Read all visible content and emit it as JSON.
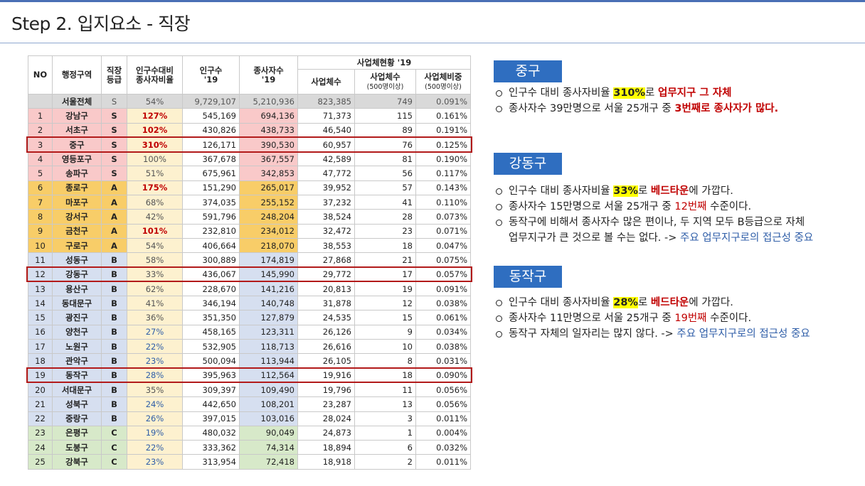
{
  "title": "Step 2. 입지요소 - 직장",
  "table": {
    "headers": {
      "no": "NO",
      "district": "행정구역",
      "grade": "직장\n등급",
      "ratio": "인구수대비\n종사자비율",
      "pop": "인구수\n'19",
      "emp": "종사자수\n'19",
      "biz_group": "사업체현황 '19",
      "biz_count": "사업체수",
      "biz_500": "사업체수",
      "biz_500_sub": "(500명이상)",
      "biz_ratio": "사업체비중",
      "biz_ratio_sub": "(500명이상)"
    },
    "total": {
      "no": "",
      "district": "서울전체",
      "grade": "S",
      "ratio": "54%",
      "pop": "9,729,107",
      "emp": "5,210,936",
      "biz": "823,385",
      "biz500": "749",
      "share": "0.091%"
    },
    "rows": [
      {
        "no": "1",
        "district": "강남구",
        "grade": "S",
        "ratio": "127%",
        "pop": "545,169",
        "emp": "694,136",
        "biz": "71,373",
        "biz500": "115",
        "share": "0.161%"
      },
      {
        "no": "2",
        "district": "서초구",
        "grade": "S",
        "ratio": "102%",
        "pop": "430,826",
        "emp": "438,733",
        "biz": "46,540",
        "biz500": "89",
        "share": "0.191%"
      },
      {
        "no": "3",
        "district": "중구",
        "grade": "S",
        "ratio": "310%",
        "pop": "126,171",
        "emp": "390,530",
        "biz": "60,957",
        "biz500": "76",
        "share": "0.125%"
      },
      {
        "no": "4",
        "district": "영등포구",
        "grade": "S",
        "ratio": "100%",
        "pop": "367,678",
        "emp": "367,557",
        "biz": "42,589",
        "biz500": "81",
        "share": "0.190%"
      },
      {
        "no": "5",
        "district": "송파구",
        "grade": "S",
        "ratio": "51%",
        "pop": "675,961",
        "emp": "342,853",
        "biz": "47,772",
        "biz500": "56",
        "share": "0.117%"
      },
      {
        "no": "6",
        "district": "종로구",
        "grade": "A",
        "ratio": "175%",
        "pop": "151,290",
        "emp": "265,017",
        "biz": "39,952",
        "biz500": "57",
        "share": "0.143%"
      },
      {
        "no": "7",
        "district": "마포구",
        "grade": "A",
        "ratio": "68%",
        "pop": "374,035",
        "emp": "255,152",
        "biz": "37,232",
        "biz500": "41",
        "share": "0.110%"
      },
      {
        "no": "8",
        "district": "강서구",
        "grade": "A",
        "ratio": "42%",
        "pop": "591,796",
        "emp": "248,204",
        "biz": "38,524",
        "biz500": "28",
        "share": "0.073%"
      },
      {
        "no": "9",
        "district": "금천구",
        "grade": "A",
        "ratio": "101%",
        "pop": "232,810",
        "emp": "234,012",
        "biz": "32,472",
        "biz500": "23",
        "share": "0.071%"
      },
      {
        "no": "10",
        "district": "구로구",
        "grade": "A",
        "ratio": "54%",
        "pop": "406,664",
        "emp": "218,070",
        "biz": "38,553",
        "biz500": "18",
        "share": "0.047%"
      },
      {
        "no": "11",
        "district": "성동구",
        "grade": "B",
        "ratio": "58%",
        "pop": "300,889",
        "emp": "174,819",
        "biz": "27,868",
        "biz500": "21",
        "share": "0.075%"
      },
      {
        "no": "12",
        "district": "강동구",
        "grade": "B",
        "ratio": "33%",
        "pop": "436,067",
        "emp": "145,990",
        "biz": "29,772",
        "biz500": "17",
        "share": "0.057%"
      },
      {
        "no": "13",
        "district": "용산구",
        "grade": "B",
        "ratio": "62%",
        "pop": "228,670",
        "emp": "141,216",
        "biz": "20,813",
        "biz500": "19",
        "share": "0.091%"
      },
      {
        "no": "14",
        "district": "동대문구",
        "grade": "B",
        "ratio": "41%",
        "pop": "346,194",
        "emp": "140,748",
        "biz": "31,878",
        "biz500": "12",
        "share": "0.038%"
      },
      {
        "no": "15",
        "district": "광진구",
        "grade": "B",
        "ratio": "36%",
        "pop": "351,350",
        "emp": "127,879",
        "biz": "24,535",
        "biz500": "15",
        "share": "0.061%"
      },
      {
        "no": "16",
        "district": "양천구",
        "grade": "B",
        "ratio": "27%",
        "pop": "458,165",
        "emp": "123,311",
        "biz": "26,126",
        "biz500": "9",
        "share": "0.034%"
      },
      {
        "no": "17",
        "district": "노원구",
        "grade": "B",
        "ratio": "22%",
        "pop": "532,905",
        "emp": "118,713",
        "biz": "26,616",
        "biz500": "10",
        "share": "0.038%"
      },
      {
        "no": "18",
        "district": "관악구",
        "grade": "B",
        "ratio": "23%",
        "pop": "500,094",
        "emp": "113,944",
        "biz": "26,105",
        "biz500": "8",
        "share": "0.031%"
      },
      {
        "no": "19",
        "district": "동작구",
        "grade": "B",
        "ratio": "28%",
        "pop": "395,963",
        "emp": "112,564",
        "biz": "19,916",
        "biz500": "18",
        "share": "0.090%"
      },
      {
        "no": "20",
        "district": "서대문구",
        "grade": "B",
        "ratio": "35%",
        "pop": "309,397",
        "emp": "109,490",
        "biz": "19,796",
        "biz500": "11",
        "share": "0.056%"
      },
      {
        "no": "21",
        "district": "성북구",
        "grade": "B",
        "ratio": "24%",
        "pop": "442,650",
        "emp": "108,201",
        "biz": "23,287",
        "biz500": "13",
        "share": "0.056%"
      },
      {
        "no": "22",
        "district": "중랑구",
        "grade": "B",
        "ratio": "26%",
        "pop": "397,015",
        "emp": "103,016",
        "biz": "28,024",
        "biz500": "3",
        "share": "0.011%"
      },
      {
        "no": "23",
        "district": "은평구",
        "grade": "C",
        "ratio": "19%",
        "pop": "480,032",
        "emp": "90,049",
        "biz": "24,873",
        "biz500": "1",
        "share": "0.004%"
      },
      {
        "no": "24",
        "district": "도봉구",
        "grade": "C",
        "ratio": "22%",
        "pop": "333,362",
        "emp": "74,314",
        "biz": "18,894",
        "biz500": "6",
        "share": "0.032%"
      },
      {
        "no": "25",
        "district": "강북구",
        "grade": "C",
        "ratio": "23%",
        "pop": "313,954",
        "emp": "72,418",
        "biz": "18,918",
        "biz500": "2",
        "share": "0.011%"
      }
    ],
    "highlighted_rows": [
      "3",
      "12",
      "19"
    ]
  },
  "colors": {
    "grade_S": "#f9c9c9",
    "grade_A": "#f8cd68",
    "grade_B": "#d6dff0",
    "grade_C": "#d7e9c9",
    "ratio_bg": "#fdf1cf",
    "highlight_box": "#b21a1a",
    "section_title_bg": "#2f6ec0",
    "emphasis_red": "#c00000",
    "emphasis_blue": "#2f5ea8",
    "marker_yellow": "#ffff00"
  },
  "sections": {
    "jung": {
      "title": "중구",
      "b1": {
        "a": "인구수 대비 종사자비율 ",
        "hl": "310%",
        "b": "로 ",
        "red": "업무지구 그 자체"
      },
      "b2": {
        "a": "종사자수 39만명으로 서울 25개구 중 ",
        "red": "3번째로 종사자가 많다."
      }
    },
    "gangdong": {
      "title": "강동구",
      "b1": {
        "a": "인구수 대비 종사자비율 ",
        "hl": "33%",
        "b": "로 ",
        "red": "베드타운",
        "c": "에 가깝다."
      },
      "b2": {
        "a": "종사자수 15만명으로 서울 25개구 중 ",
        "red": "12번째",
        "b": " 수준이다."
      },
      "b3": {
        "line1": "동작구에 비해서 종사자수 많은 편이나, 두 지역 모두 B등급으로 자체",
        "line2": "업무지구가 큰 것으로 볼 수는 없다. -> ",
        "blue": "주요 업무지구로의 접근성 중요"
      }
    },
    "dongjak": {
      "title": "동작구",
      "b1": {
        "a": "인구수 대비 종사자비율 ",
        "hl": "28%",
        "b": "로 ",
        "red": "베드타운",
        "c": "에 가깝다."
      },
      "b2": {
        "a": "종사자수 11만명으로 서울 25개구 중 ",
        "red": "19번째",
        "b": " 수준이다."
      },
      "b3": {
        "a": "동작구 자체의 일자리는 많지 않다. -> ",
        "blue": "주요 업무지구로의 접근성 중요"
      }
    }
  }
}
